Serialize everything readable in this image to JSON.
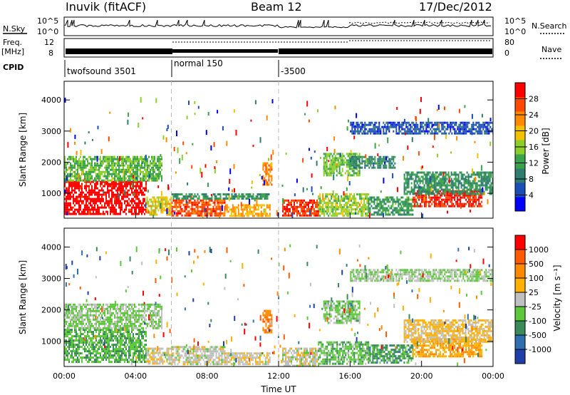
{
  "header": {
    "station": "Inuvik (fitACF)",
    "beam": "Beam 12",
    "date": "17/Dec/2012"
  },
  "panels": {
    "nsky_label": "N.Sky",
    "nsky_ticks": [
      "10^5",
      "10^0"
    ],
    "nsearch_label": "N.Search",
    "nsearch_ticks": [
      "10^5",
      "10^0"
    ],
    "freq_label_1": "Freq.",
    "freq_label_2": "[MHz]",
    "freq_ticks": [
      "12",
      "8"
    ],
    "nave_label": "Nave",
    "nave_ticks": [
      "80",
      "0"
    ],
    "cpid_label": "CPID",
    "cpid_segments": [
      {
        "label": "twofsound 3501",
        "start_h": 0,
        "end_h": 6
      },
      {
        "label": "normal 150",
        "start_h": 6,
        "end_h": 12
      },
      {
        "label": "-3500",
        "start_h": 12,
        "end_h": 24
      }
    ]
  },
  "power_colorbar": {
    "label": "Power [dB]",
    "ticks": [
      "28",
      "24",
      "20",
      "16",
      "12",
      "8",
      "4"
    ],
    "colors": [
      "#0000ff",
      "#1a4fb8",
      "#2e7d6e",
      "#3aa24a",
      "#8ccf2a",
      "#f2c200",
      "#ff8a00",
      "#ff4a00",
      "#ff0000"
    ]
  },
  "velocity_colorbar": {
    "label": "Velocity [m s⁻¹]",
    "ticks": [
      "1000",
      "500",
      "100",
      "25",
      "-25",
      "-100",
      "-500",
      "-1000"
    ],
    "colors": [
      "#1f3fa8",
      "#2f6fb0",
      "#3a8a5a",
      "#5cc83a",
      "#c0c0c0",
      "#ffb000",
      "#ff8a00",
      "#ff5a00",
      "#ff0000"
    ]
  },
  "x_axis": {
    "label": "Time UT",
    "ticks": [
      "00:00",
      "04:00",
      "08:00",
      "12:00",
      "16:00",
      "20:00",
      "00:00"
    ]
  },
  "chart_data": {
    "type": "heatmap",
    "title": "Inuvik (fitACF) Beam 12 17/Dec/2012",
    "xlabel": "Time UT",
    "ylabel": "Slant Range [km]",
    "xlim_hours": [
      0,
      24
    ],
    "ylim_km": [
      200,
      4600
    ],
    "yticks": [
      "1000",
      "2000",
      "3000",
      "4000"
    ],
    "panels": [
      {
        "name": "Power",
        "unit": "dB",
        "scale": [
          0,
          30
        ],
        "regions": [
          {
            "t0": 0.0,
            "t1": 4.6,
            "r0": 350,
            "r1": 1400,
            "value": 29
          },
          {
            "t0": 0.0,
            "t1": 5.5,
            "r0": 1400,
            "r1": 2200,
            "value": 13
          },
          {
            "t0": 4.6,
            "t1": 6.0,
            "r0": 300,
            "r1": 900,
            "value": 18
          },
          {
            "t0": 6.0,
            "t1": 9.0,
            "r0": 250,
            "r1": 800,
            "value": 25
          },
          {
            "t0": 9.0,
            "t1": 11.5,
            "r0": 250,
            "r1": 650,
            "value": 20
          },
          {
            "t0": 6.0,
            "t1": 11.5,
            "r0": 800,
            "r1": 1000,
            "value": 10
          },
          {
            "t0": 11.1,
            "t1": 11.6,
            "r0": 1300,
            "r1": 2000,
            "value": 22
          },
          {
            "t0": 12.2,
            "t1": 14.2,
            "r0": 250,
            "r1": 800,
            "value": 26
          },
          {
            "t0": 14.2,
            "t1": 17.0,
            "r0": 300,
            "r1": 1000,
            "value": 15
          },
          {
            "t0": 14.5,
            "t1": 16.5,
            "r0": 1600,
            "r1": 2300,
            "value": 14
          },
          {
            "t0": 16.0,
            "t1": 18.5,
            "r0": 1800,
            "r1": 2200,
            "value": 9
          },
          {
            "t0": 17.0,
            "t1": 19.5,
            "r0": 300,
            "r1": 900,
            "value": 11
          },
          {
            "t0": 19.5,
            "t1": 23.4,
            "r0": 550,
            "r1": 1100,
            "value": 27
          },
          {
            "t0": 19.0,
            "t1": 24.0,
            "r0": 1000,
            "r1": 1700,
            "value": 10
          },
          {
            "t0": 16.0,
            "t1": 24.0,
            "r0": 2900,
            "r1": 3300,
            "value": 5
          }
        ]
      },
      {
        "name": "Velocity",
        "unit": "m s⁻¹",
        "scale": [
          -1000,
          1000
        ],
        "regions": [
          {
            "t0": 0.0,
            "t1": 4.6,
            "r0": 350,
            "r1": 1400,
            "value": -300
          },
          {
            "t0": 0.0,
            "t1": 5.5,
            "r0": 1400,
            "r1": 2200,
            "value": -150
          },
          {
            "t0": 4.6,
            "t1": 6.0,
            "r0": 300,
            "r1": 800,
            "value": 50
          },
          {
            "t0": 6.0,
            "t1": 9.0,
            "r0": 250,
            "r1": 850,
            "value": 0
          },
          {
            "t0": 9.0,
            "t1": 11.5,
            "r0": 250,
            "r1": 650,
            "value": 60
          },
          {
            "t0": 11.1,
            "t1": 11.6,
            "r0": 1300,
            "r1": 2000,
            "value": 500
          },
          {
            "t0": 12.2,
            "t1": 14.2,
            "r0": 250,
            "r1": 800,
            "value": 0
          },
          {
            "t0": 14.2,
            "t1": 17.0,
            "r0": 300,
            "r1": 1000,
            "value": -250
          },
          {
            "t0": 14.5,
            "t1": 16.5,
            "r0": 1600,
            "r1": 2300,
            "value": -200
          },
          {
            "t0": 17.0,
            "t1": 19.5,
            "r0": 300,
            "r1": 900,
            "value": -400
          },
          {
            "t0": 19.5,
            "t1": 23.4,
            "r0": 550,
            "r1": 1100,
            "value": 300
          },
          {
            "t0": 19.0,
            "t1": 24.0,
            "r0": 1000,
            "r1": 1700,
            "value": 150
          },
          {
            "t0": 16.0,
            "t1": 24.0,
            "r0": 2900,
            "r1": 3300,
            "value": -120
          }
        ]
      }
    ],
    "dashed_time_markers_h": [
      6,
      12
    ]
  }
}
